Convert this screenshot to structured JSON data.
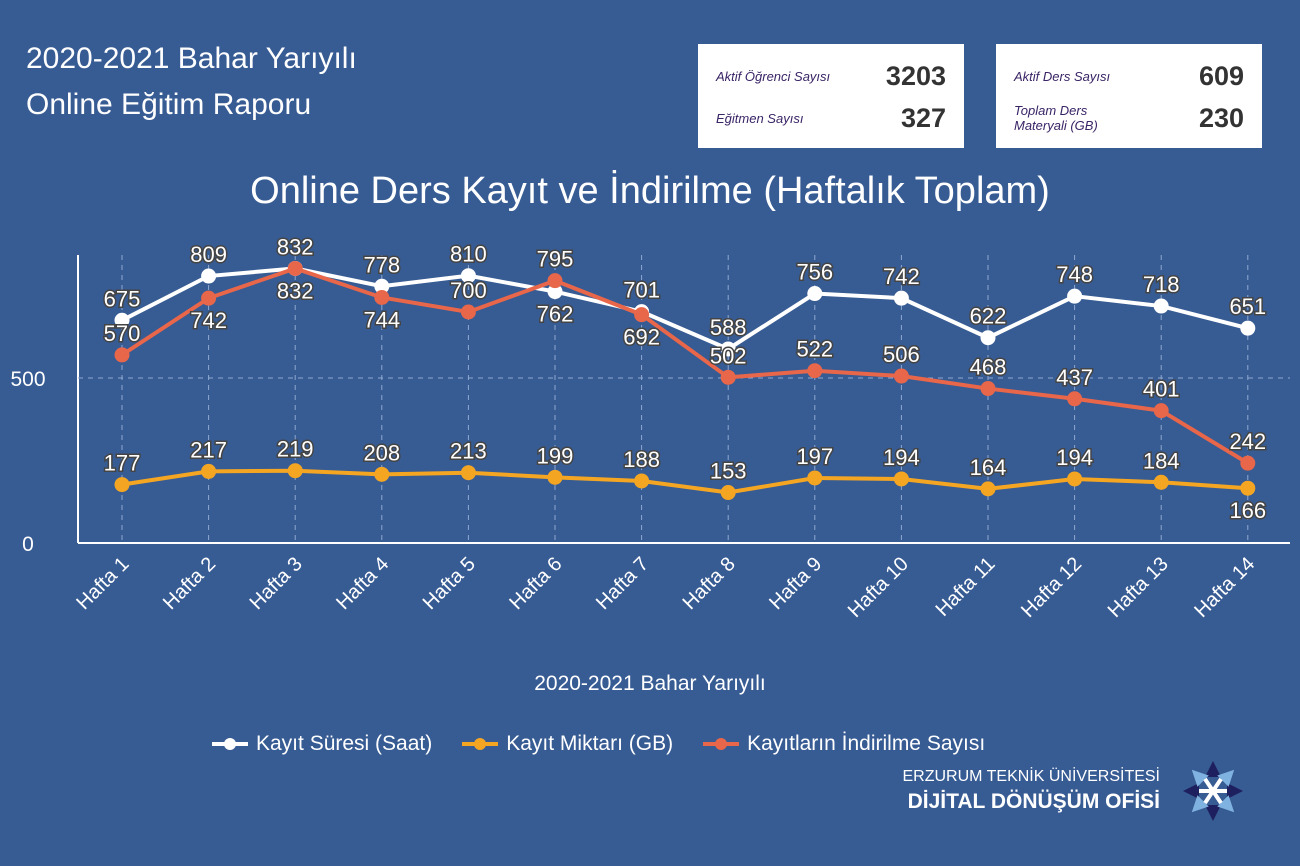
{
  "header": {
    "line1": "2020-2021 Bahar Yarıyılı",
    "line2": "Online Eğitim Raporu"
  },
  "stats": {
    "card1": [
      {
        "label": "Aktif Öğrenci Sayısı",
        "value": "3203"
      },
      {
        "label": "Eğitmen Sayısı",
        "value": "327"
      }
    ],
    "card2": [
      {
        "label": "Aktif Ders Sayısı",
        "value": "609"
      },
      {
        "label": "Toplam Ders Materyali (GB)",
        "value": "230"
      }
    ]
  },
  "logo": {
    "line1": "ERZURUM TEKNİK ÜNİVERSİTESİ",
    "line2": "DİJİTAL DÖNÜŞÜM OFİSİ"
  },
  "chart_data": {
    "type": "line",
    "title": "Online Ders Kayıt ve İndirilme (Haftalık Toplam)",
    "xlabel": "2020-2021 Bahar Yarıyılı",
    "ylabel": "",
    "ylim": [
      0,
      870
    ],
    "yticks": [
      0,
      500
    ],
    "categories": [
      "Hafta 1",
      "Hafta 2",
      "Hafta 3",
      "Hafta 4",
      "Hafta 5",
      "Hafta 6",
      "Hafta 7",
      "Hafta 8",
      "Hafta 9",
      "Hafta 10",
      "Hafta 11",
      "Hafta 12",
      "Hafta 13",
      "Hafta 14"
    ],
    "legend_position": "bottom",
    "series": [
      {
        "name": "Kayıt Süresi (Saat)",
        "color": "#ffffff",
        "values": [
          675,
          809,
          832,
          778,
          810,
          762,
          701,
          588,
          756,
          742,
          622,
          748,
          718,
          651
        ]
      },
      {
        "name": "Kayıt Miktarı (GB)",
        "color": "#f4a623",
        "values": [
          177,
          217,
          219,
          208,
          213,
          199,
          188,
          153,
          197,
          194,
          164,
          194,
          184,
          166
        ]
      },
      {
        "name": "Kayıtların İndirilme Sayısı",
        "color": "#e8664a",
        "values": [
          570,
          742,
          832,
          744,
          700,
          795,
          692,
          502,
          522,
          506,
          468,
          437,
          401,
          242
        ]
      }
    ]
  }
}
